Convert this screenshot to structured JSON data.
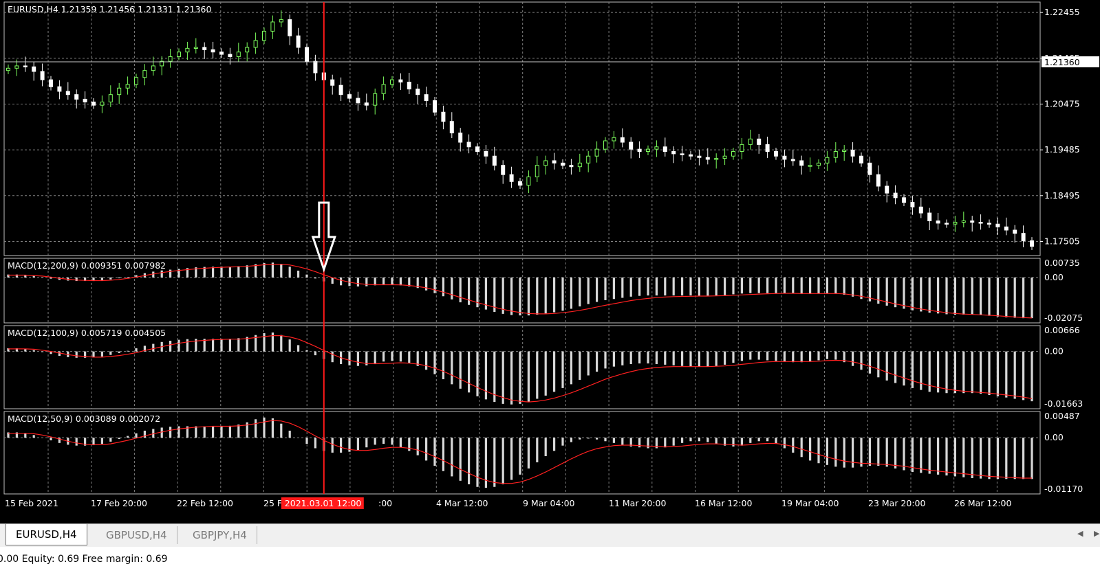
{
  "symbol_header": "EURUSD,H4  1.21359 1.21456 1.21331 1.21360",
  "colors": {
    "background": "#000000",
    "bull_candle": "#7CFC5C",
    "bear_candle": "#ffffff",
    "grid": "#7f7f7f",
    "signal_line": "#ff2020",
    "histogram": "#d8d8d8",
    "cursor_line": "#ff1a1a",
    "price_badge": "#ffffff"
  },
  "price_axis": {
    "labels": [
      "1.22455",
      "1.21465",
      "1.20475",
      "1.19485",
      "1.18495",
      "1.17505"
    ],
    "current_price": "1.21360"
  },
  "price_series": [
    1.2125,
    1.213,
    1.2128,
    1.2118,
    1.21,
    1.2085,
    1.2075,
    1.2068,
    1.2058,
    1.2052,
    1.2045,
    1.2052,
    1.2068,
    1.2082,
    1.209,
    1.2105,
    1.212,
    1.213,
    1.214,
    1.215,
    1.216,
    1.2168,
    1.217,
    1.2165,
    1.216,
    1.2155,
    1.215,
    1.216,
    1.217,
    1.2185,
    1.2205,
    1.2225,
    1.223,
    1.2195,
    1.217,
    1.214,
    1.2115,
    1.21,
    1.2088,
    1.2068,
    1.206,
    1.205,
    1.2045,
    1.207,
    1.209,
    1.21,
    1.2095,
    1.208,
    1.2068,
    1.2055,
    1.203,
    1.201,
    1.1985,
    1.1965,
    1.1955,
    1.1945,
    1.1935,
    1.1915,
    1.1895,
    1.188,
    1.1872,
    1.189,
    1.1915,
    1.1925,
    1.192,
    1.1915,
    1.1912,
    1.192,
    1.1935,
    1.195,
    1.1968,
    1.1975,
    1.1965,
    1.195,
    1.1945,
    1.195,
    1.1955,
    1.1945,
    1.194,
    1.1938,
    1.1935,
    1.1932,
    1.1928,
    1.193,
    1.1935,
    1.1945,
    1.196,
    1.1972,
    1.196,
    1.1945,
    1.1935,
    1.1928,
    1.1925,
    1.1915,
    1.1915,
    1.192,
    1.1932,
    1.1945,
    1.1948,
    1.1935,
    1.192,
    1.1895,
    1.187,
    1.1855,
    1.1845,
    1.1835,
    1.1825,
    1.1812,
    1.1795,
    1.179,
    1.1788,
    1.1792,
    1.1795,
    1.1792,
    1.179,
    1.1788,
    1.1782,
    1.1775,
    1.1768,
    1.1752,
    1.174
  ],
  "indicators": [
    {
      "label": "MACD(12,200,9) 0.009351 0.007982",
      "axis_labels": [
        "0.00735",
        "0.00",
        "-0.02075"
      ],
      "max": 0.00735,
      "min": -0.02075,
      "macd": [
        0.0015,
        0.0015,
        0.0012,
        0.0008,
        0.0002,
        -0.0006,
        -0.0012,
        -0.0016,
        -0.0018,
        -0.0018,
        -0.0018,
        -0.0015,
        -0.001,
        -0.0004,
        0.0003,
        0.0012,
        0.0022,
        0.003,
        0.0036,
        0.004,
        0.0044,
        0.0048,
        0.0052,
        0.0054,
        0.0055,
        0.0056,
        0.0056,
        0.0058,
        0.0062,
        0.0068,
        0.0074,
        0.0076,
        0.007,
        0.0055,
        0.0035,
        0.0015,
        -0.0005,
        -0.002,
        -0.0032,
        -0.004,
        -0.0044,
        -0.0046,
        -0.0045,
        -0.004,
        -0.0036,
        -0.0036,
        -0.004,
        -0.0046,
        -0.0054,
        -0.0066,
        -0.008,
        -0.0096,
        -0.0112,
        -0.0127,
        -0.014,
        -0.0152,
        -0.0164,
        -0.0176,
        -0.0186,
        -0.0192,
        -0.0194,
        -0.0194,
        -0.019,
        -0.0184,
        -0.0178,
        -0.017,
        -0.016,
        -0.0148,
        -0.0136,
        -0.0125,
        -0.0116,
        -0.011,
        -0.0104,
        -0.0098,
        -0.0094,
        -0.0092,
        -0.0092,
        -0.0092,
        -0.0092,
        -0.0092,
        -0.0092,
        -0.0093,
        -0.0093,
        -0.0092,
        -0.009,
        -0.0086,
        -0.0082,
        -0.008,
        -0.008,
        -0.008,
        -0.008,
        -0.008,
        -0.0082,
        -0.0084,
        -0.0084,
        -0.0082,
        -0.008,
        -0.0082,
        -0.0088,
        -0.0098,
        -0.011,
        -0.0122,
        -0.0134,
        -0.0144,
        -0.0152,
        -0.016,
        -0.0168,
        -0.0174,
        -0.018,
        -0.0184,
        -0.0188,
        -0.019,
        -0.019,
        -0.019,
        -0.0192,
        -0.0196,
        -0.02,
        -0.0204,
        -0.0206,
        -0.0208,
        -0.0208
      ],
      "signal": [
        0.0012,
        0.0012,
        0.0012,
        0.001,
        0.0007,
        0.0002,
        -0.0004,
        -0.0009,
        -0.0013,
        -0.0015,
        -0.0016,
        -0.0016,
        -0.0014,
        -0.001,
        -0.0005,
        0.0002,
        0.001,
        0.0018,
        0.0025,
        0.0031,
        0.0036,
        0.004,
        0.0044,
        0.0047,
        0.005,
        0.0052,
        0.0054,
        0.0055,
        0.0057,
        0.0061,
        0.0065,
        0.0068,
        0.0068,
        0.0064,
        0.0055,
        0.0044,
        0.003,
        0.0014,
        -0.0001,
        -0.0014,
        -0.0024,
        -0.0031,
        -0.0035,
        -0.0037,
        -0.0037,
        -0.0037,
        -0.0038,
        -0.0041,
        -0.0046,
        -0.0053,
        -0.0063,
        -0.0075,
        -0.0088,
        -0.0102,
        -0.0115,
        -0.0128,
        -0.014,
        -0.0152,
        -0.0163,
        -0.0172,
        -0.0179,
        -0.0184,
        -0.0186,
        -0.0186,
        -0.0184,
        -0.018,
        -0.0175,
        -0.0168,
        -0.016,
        -0.0151,
        -0.0142,
        -0.0134,
        -0.0126,
        -0.0118,
        -0.0112,
        -0.0107,
        -0.0103,
        -0.01,
        -0.0098,
        -0.0097,
        -0.0096,
        -0.0095,
        -0.0095,
        -0.0094,
        -0.0093,
        -0.0091,
        -0.0089,
        -0.0087,
        -0.0085,
        -0.0083,
        -0.0082,
        -0.0081,
        -0.0081,
        -0.0082,
        -0.0082,
        -0.0082,
        -0.0082,
        -0.0082,
        -0.0084,
        -0.0089,
        -0.0096,
        -0.0105,
        -0.0115,
        -0.0125,
        -0.0135,
        -0.0144,
        -0.0153,
        -0.0161,
        -0.0168,
        -0.0174,
        -0.018,
        -0.0184,
        -0.0187,
        -0.0189,
        -0.0191,
        -0.0193,
        -0.0196,
        -0.0199,
        -0.0202,
        -0.0205,
        -0.0207
      ]
    },
    {
      "label": "MACD(12,100,9) 0.005719 0.004505",
      "axis_labels": [
        "0.00666",
        "0.00",
        "-0.01663"
      ],
      "max": 0.00666,
      "min": -0.01663,
      "macd": [
        0.001,
        0.001,
        0.0008,
        0.0004,
        -0.0002,
        -0.0008,
        -0.0014,
        -0.0018,
        -0.002,
        -0.002,
        -0.0019,
        -0.0016,
        -0.0011,
        -0.0005,
        0.0002,
        0.001,
        0.0018,
        0.0024,
        0.003,
        0.0034,
        0.0037,
        0.0039,
        0.004,
        0.004,
        0.004,
        0.004,
        0.004,
        0.0042,
        0.0046,
        0.0052,
        0.0058,
        0.006,
        0.0052,
        0.0038,
        0.002,
        0.0004,
        -0.0012,
        -0.0024,
        -0.0034,
        -0.004,
        -0.0044,
        -0.0046,
        -0.0044,
        -0.0038,
        -0.0032,
        -0.003,
        -0.0032,
        -0.0038,
        -0.0046,
        -0.0058,
        -0.0072,
        -0.0088,
        -0.0104,
        -0.0118,
        -0.013,
        -0.0142,
        -0.0152,
        -0.016,
        -0.0166,
        -0.0168,
        -0.0166,
        -0.016,
        -0.015,
        -0.014,
        -0.0128,
        -0.0116,
        -0.0104,
        -0.009,
        -0.0076,
        -0.0064,
        -0.0054,
        -0.0048,
        -0.0044,
        -0.004,
        -0.0038,
        -0.0038,
        -0.004,
        -0.0042,
        -0.0044,
        -0.0046,
        -0.0047,
        -0.0048,
        -0.0048,
        -0.0046,
        -0.0042,
        -0.0036,
        -0.003,
        -0.0026,
        -0.0026,
        -0.0028,
        -0.003,
        -0.0032,
        -0.0034,
        -0.0034,
        -0.0032,
        -0.0028,
        -0.0024,
        -0.0026,
        -0.0034,
        -0.0046,
        -0.0058,
        -0.007,
        -0.0082,
        -0.0092,
        -0.01,
        -0.0108,
        -0.0116,
        -0.0122,
        -0.0128,
        -0.013,
        -0.0132,
        -0.0132,
        -0.0132,
        -0.0132,
        -0.0134,
        -0.0138,
        -0.0142,
        -0.0146,
        -0.015,
        -0.0154,
        -0.0158
      ],
      "signal": [
        0.0008,
        0.0008,
        0.0008,
        0.0007,
        0.0004,
        0.0,
        -0.0005,
        -0.001,
        -0.0014,
        -0.0016,
        -0.0018,
        -0.0018,
        -0.0016,
        -0.0013,
        -0.0009,
        -0.0004,
        0.0003,
        0.0009,
        0.0015,
        0.0021,
        0.0026,
        0.003,
        0.0033,
        0.0035,
        0.0037,
        0.0038,
        0.0039,
        0.0039,
        0.0041,
        0.0044,
        0.0047,
        0.005,
        0.005,
        0.0046,
        0.0039,
        0.0028,
        0.0016,
        0.0003,
        -0.0009,
        -0.002,
        -0.0028,
        -0.0034,
        -0.0038,
        -0.0039,
        -0.0038,
        -0.0037,
        -0.0036,
        -0.0037,
        -0.004,
        -0.0045,
        -0.0053,
        -0.0063,
        -0.0075,
        -0.0088,
        -0.0101,
        -0.0114,
        -0.0126,
        -0.0137,
        -0.0146,
        -0.0154,
        -0.0158,
        -0.016,
        -0.0158,
        -0.0154,
        -0.0148,
        -0.014,
        -0.0131,
        -0.0121,
        -0.011,
        -0.0099,
        -0.0088,
        -0.0079,
        -0.0071,
        -0.0064,
        -0.0058,
        -0.0054,
        -0.0051,
        -0.0049,
        -0.0048,
        -0.0048,
        -0.0048,
        -0.0048,
        -0.0048,
        -0.0047,
        -0.0046,
        -0.0044,
        -0.0041,
        -0.0038,
        -0.0035,
        -0.0033,
        -0.0032,
        -0.0032,
        -0.0032,
        -0.0032,
        -0.0032,
        -0.0031,
        -0.0029,
        -0.0028,
        -0.0029,
        -0.0033,
        -0.0039,
        -0.0047,
        -0.0056,
        -0.0066,
        -0.0075,
        -0.0084,
        -0.0093,
        -0.0101,
        -0.0108,
        -0.0114,
        -0.0119,
        -0.0123,
        -0.0126,
        -0.0128,
        -0.013,
        -0.0132,
        -0.0135,
        -0.0138,
        -0.0141,
        -0.0145,
        -0.0149
      ]
    },
    {
      "label": "MACD(12,50,9) 0.003089 0.002072",
      "axis_labels": [
        "0.00487",
        "0.00",
        "-0.01170"
      ],
      "max": 0.00487,
      "min": -0.0117,
      "macd": [
        0.0012,
        0.0012,
        0.001,
        0.0006,
        0.0,
        -0.0006,
        -0.0012,
        -0.0016,
        -0.0018,
        -0.0018,
        -0.0017,
        -0.0014,
        -0.0009,
        -0.0003,
        0.0004,
        0.001,
        0.0016,
        0.002,
        0.0023,
        0.0025,
        0.0026,
        0.0026,
        0.0026,
        0.0026,
        0.0026,
        0.0026,
        0.0027,
        0.003,
        0.0035,
        0.0042,
        0.0046,
        0.0044,
        0.0032,
        0.0016,
        0.0,
        -0.0014,
        -0.0024,
        -0.003,
        -0.0034,
        -0.0034,
        -0.0032,
        -0.0028,
        -0.0022,
        -0.0016,
        -0.0014,
        -0.0016,
        -0.0022,
        -0.003,
        -0.004,
        -0.0052,
        -0.0064,
        -0.0076,
        -0.0088,
        -0.0098,
        -0.0106,
        -0.0112,
        -0.0114,
        -0.0112,
        -0.0106,
        -0.0096,
        -0.0084,
        -0.007,
        -0.0056,
        -0.0042,
        -0.003,
        -0.0018,
        -0.001,
        -0.0004,
        -0.0002,
        -0.0004,
        -0.0008,
        -0.0012,
        -0.0016,
        -0.002,
        -0.0022,
        -0.0024,
        -0.0024,
        -0.0022,
        -0.0018,
        -0.0012,
        -0.0008,
        -0.0008,
        -0.001,
        -0.0014,
        -0.0018,
        -0.002,
        -0.0018,
        -0.0012,
        -0.0008,
        -0.0008,
        -0.0014,
        -0.0024,
        -0.0034,
        -0.0044,
        -0.0052,
        -0.0058,
        -0.0062,
        -0.0066,
        -0.0068,
        -0.0068,
        -0.0066,
        -0.0064,
        -0.0064,
        -0.0066,
        -0.007,
        -0.0074,
        -0.0078,
        -0.008,
        -0.0082,
        -0.0084,
        -0.0086,
        -0.0088,
        -0.009,
        -0.0092,
        -0.0093,
        -0.0094,
        -0.0094,
        -0.0094,
        -0.0094,
        -0.0094,
        -0.0094
      ],
      "signal": [
        0.001,
        0.001,
        0.001,
        0.0009,
        0.0006,
        0.0002,
        -0.0003,
        -0.0008,
        -0.0012,
        -0.0015,
        -0.0016,
        -0.0016,
        -0.0014,
        -0.001,
        -0.0006,
        -0.0001,
        0.0004,
        0.0009,
        0.0013,
        0.0017,
        0.002,
        0.0022,
        0.0024,
        0.0025,
        0.0026,
        0.0026,
        0.0026,
        0.0027,
        0.0029,
        0.0032,
        0.0036,
        0.0039,
        0.0038,
        0.0033,
        0.0025,
        0.0015,
        0.0004,
        -0.0006,
        -0.0015,
        -0.0022,
        -0.0027,
        -0.0029,
        -0.0029,
        -0.0027,
        -0.0024,
        -0.0022,
        -0.0022,
        -0.0024,
        -0.0028,
        -0.0035,
        -0.0043,
        -0.0052,
        -0.0062,
        -0.0072,
        -0.0081,
        -0.009,
        -0.0097,
        -0.0102,
        -0.0104,
        -0.0104,
        -0.0101,
        -0.0095,
        -0.0087,
        -0.0078,
        -0.0068,
        -0.0058,
        -0.0048,
        -0.0039,
        -0.0031,
        -0.0025,
        -0.0021,
        -0.0018,
        -0.0017,
        -0.0017,
        -0.0018,
        -0.0019,
        -0.002,
        -0.0021,
        -0.002,
        -0.0019,
        -0.0017,
        -0.0015,
        -0.0014,
        -0.0014,
        -0.0015,
        -0.0016,
        -0.0017,
        -0.0016,
        -0.0014,
        -0.0013,
        -0.0013,
        -0.0016,
        -0.002,
        -0.0026,
        -0.0032,
        -0.0038,
        -0.0044,
        -0.0049,
        -0.0053,
        -0.0056,
        -0.0058,
        -0.0059,
        -0.006,
        -0.0061,
        -0.0063,
        -0.0065,
        -0.0068,
        -0.0071,
        -0.0074,
        -0.0076,
        -0.0078,
        -0.008,
        -0.0082,
        -0.0084,
        -0.0086,
        -0.0088,
        -0.0089,
        -0.009,
        -0.0091,
        -0.0092,
        -0.0092
      ]
    }
  ],
  "time_axis": {
    "labels": [
      "15 Feb 2021",
      "17 Feb 20:00",
      "22 Feb 12:00",
      "25 Feb 0",
      ":00",
      "4 Mar 12:00",
      "9 Mar 04:00",
      "11 Mar 20:00",
      "16 Mar 12:00",
      "19 Mar 04:00",
      "23 Mar 20:00",
      "26 Mar 12:00"
    ],
    "crosshair_label": "2021.03.01 12:00",
    "crosshair_bar": 37
  },
  "tabs": [
    {
      "label": "EURUSD,H4",
      "active": true
    },
    {
      "label": "GBPUSD,H4",
      "active": false
    },
    {
      "label": "GBPJPY,H4",
      "active": false
    }
  ],
  "status_text": "0.00  Equity: 0.69  Free margin: 0.69"
}
